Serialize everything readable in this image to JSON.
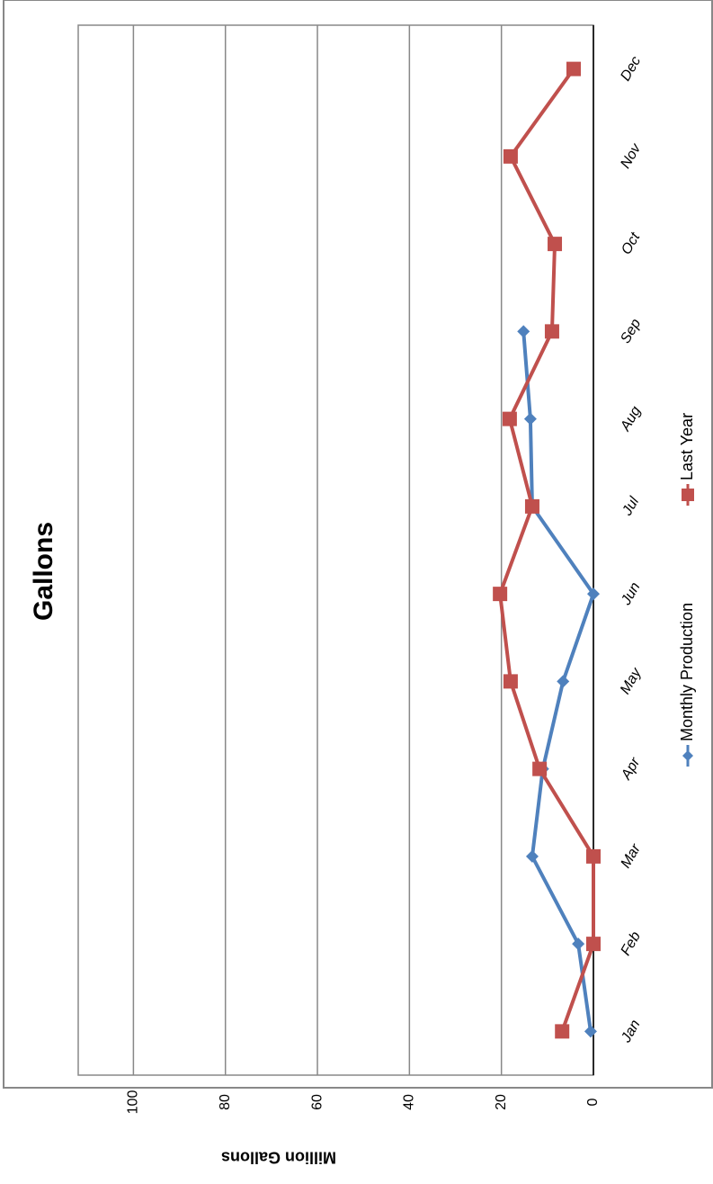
{
  "chart_data": {
    "type": "line",
    "title": "Gallons",
    "y_label": "Million Gallons",
    "categories": [
      "Jan",
      "Feb",
      "Mar",
      "Apr",
      "May",
      "Jun",
      "Jul",
      "Aug",
      "Sep",
      "Oct",
      "Nov",
      "Dec"
    ],
    "series": [
      {
        "name": "Monthly Production",
        "color": "#4f81bd",
        "marker": "diamond",
        "values": [
          0.6,
          3.3,
          13.3,
          11,
          6.6,
          0,
          13.3,
          13.7,
          15.2,
          null,
          null,
          null
        ]
      },
      {
        "name": "Last Year",
        "color": "#c0504d",
        "marker": "square",
        "values": [
          6.8,
          0,
          0,
          11.7,
          18,
          20.3,
          13.3,
          18.2,
          9,
          8.4,
          18,
          4.3
        ]
      }
    ],
    "ylim": [
      0,
      112
    ],
    "yticks": [
      0,
      20,
      40,
      60,
      80,
      100
    ],
    "grid": true
  }
}
